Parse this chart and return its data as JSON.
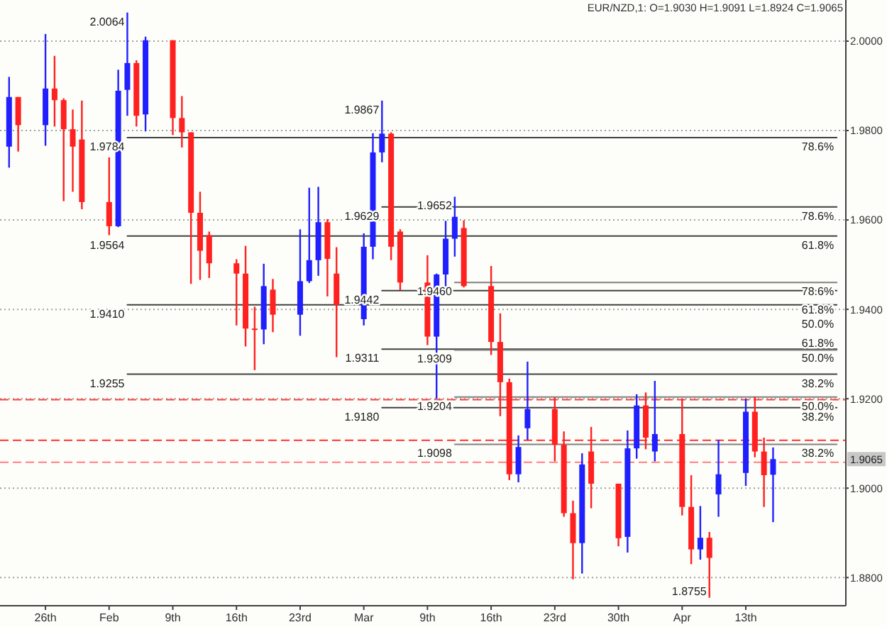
{
  "chart_data": {
    "type": "candlestick",
    "title": "EUR/NZD,1: O=1.9030 H=1.9091 L=1.8924 C=1.9065",
    "x": [
      "--01-22",
      "--01-23",
      "--01-26",
      "--01-27",
      "--01-28",
      "--01-29",
      "--01-30",
      "--02-02",
      "--02-03",
      "--02-04",
      "--02-05",
      "--02-06",
      "--02-09",
      "--02-10",
      "--02-11",
      "--02-12",
      "--02-13",
      "--02-16",
      "--02-17",
      "--02-18",
      "--02-19",
      "--02-20",
      "--02-23",
      "--02-24",
      "--02-25",
      "--02-26",
      "--02-27",
      "--03-02",
      "--03-03",
      "--03-04",
      "--03-05",
      "--03-06",
      "--03-09",
      "--03-10",
      "--03-11",
      "--03-12",
      "--03-13",
      "--03-16",
      "--03-17",
      "--03-18",
      "--03-19",
      "--03-20",
      "--03-23",
      "--03-24",
      "--03-25",
      "--03-26",
      "--03-27",
      "--03-30",
      "--03-31",
      "--04-01",
      "--04-02",
      "--04-03",
      "--04-06",
      "--04-07",
      "--04-08",
      "--04-09",
      "--04-10",
      "--04-13",
      "--04-14",
      "--04-15",
      "--04-16"
    ],
    "ohlc": [
      [
        1.9764,
        1.992,
        1.9717,
        1.9875
      ],
      [
        1.9875,
        1.9875,
        1.9753,
        1.9812
      ],
      [
        1.9812,
        2.0016,
        1.9766,
        1.9894
      ],
      [
        1.9894,
        1.9967,
        1.9809,
        1.9868
      ],
      [
        1.9868,
        1.9872,
        1.9642,
        1.9803
      ],
      [
        1.9803,
        1.9847,
        1.9663,
        1.9764
      ],
      [
        1.978,
        1.9867,
        1.9624,
        1.964
      ],
      [
        1.964,
        1.974,
        1.9566,
        1.9586
      ],
      [
        1.9586,
        1.9936,
        1.9584,
        1.9889
      ],
      [
        1.9891,
        2.0064,
        1.9833,
        1.9951
      ],
      [
        1.9951,
        1.9957,
        1.9809,
        1.9833
      ],
      [
        1.9836,
        2.001,
        1.9798,
        2.0002
      ],
      [
        2.0002,
        2.0002,
        1.979,
        1.9828
      ],
      [
        1.9828,
        1.9877,
        1.9762,
        1.9796
      ],
      [
        1.9796,
        1.9796,
        1.9457,
        1.9616
      ],
      [
        1.9616,
        1.9663,
        1.9466,
        1.9531
      ],
      [
        1.9566,
        1.9574,
        1.947,
        1.9503
      ],
      [
        1.9503,
        1.9512,
        1.9364,
        1.948
      ],
      [
        1.948,
        1.9542,
        1.9317,
        1.9357
      ],
      [
        1.9357,
        1.9406,
        1.9264,
        1.9355
      ],
      [
        1.9355,
        1.9502,
        1.9322,
        1.9452
      ],
      [
        1.9444,
        1.9468,
        1.9349,
        1.9388
      ],
      [
        1.9388,
        1.9579,
        1.9341,
        1.9463
      ],
      [
        1.9463,
        1.9672,
        1.9459,
        1.951
      ],
      [
        1.951,
        1.9674,
        1.9475,
        1.9595
      ],
      [
        1.9595,
        1.9602,
        1.9429,
        1.9513
      ],
      [
        1.948,
        1.9539,
        1.9293,
        1.941
      ],
      [
        1.9378,
        1.957,
        1.9364,
        1.954
      ],
      [
        1.954,
        1.9794,
        1.9512,
        1.9751
      ],
      [
        1.9751,
        1.9867,
        1.9729,
        1.9793
      ],
      [
        1.9793,
        1.9796,
        1.951,
        1.954
      ],
      [
        1.9574,
        1.9579,
        1.9443,
        1.946
      ],
      [
        1.946,
        1.9521,
        1.932,
        1.9339
      ],
      [
        1.9339,
        1.948,
        1.92,
        1.9478
      ],
      [
        1.9478,
        1.9598,
        1.9443,
        1.9558
      ],
      [
        1.9558,
        1.9652,
        1.9518,
        1.9607
      ],
      [
        1.9582,
        1.9599,
        1.9449,
        1.9452
      ],
      [
        1.9452,
        1.9497,
        1.9298,
        1.9327
      ],
      [
        1.9327,
        1.9391,
        1.9161,
        1.9237
      ],
      [
        1.9237,
        1.9245,
        1.9018,
        1.9031
      ],
      [
        1.9031,
        1.9118,
        1.9013,
        1.9092
      ],
      [
        1.9134,
        1.9283,
        1.9108,
        1.9177
      ],
      [
        1.9177,
        1.9203,
        1.906,
        1.9097
      ],
      [
        1.9097,
        1.9127,
        1.8936,
        1.8944
      ],
      [
        1.8944,
        1.8972,
        1.8796,
        1.8877
      ],
      [
        1.8877,
        1.9078,
        1.8809,
        1.9053
      ],
      [
        1.9082,
        1.9137,
        1.8955,
        1.901
      ],
      [
        1.901,
        1.901,
        1.887,
        1.8888
      ],
      [
        1.8891,
        1.9129,
        1.8856,
        1.9089
      ],
      [
        1.9089,
        1.921,
        1.9066,
        1.9185
      ],
      [
        1.9185,
        1.9214,
        1.9087,
        1.9113
      ],
      [
        1.9082,
        1.924,
        1.906,
        1.9121
      ],
      [
        1.9121,
        1.92,
        1.8939,
        1.8958
      ],
      [
        1.8958,
        1.9029,
        1.883,
        1.8863
      ],
      [
        1.8863,
        1.896,
        1.884,
        1.8889
      ],
      [
        1.8889,
        1.8902,
        1.8755,
        1.8844
      ],
      [
        1.8986,
        1.9108,
        1.8936,
        1.9031
      ],
      [
        1.9034,
        1.92,
        1.9005,
        1.9171
      ],
      [
        1.9171,
        1.9205,
        1.9069,
        1.9082
      ],
      [
        1.9082,
        1.9113,
        1.8958,
        1.9029
      ],
      [
        1.903,
        1.9091,
        1.8924,
        1.9065
      ]
    ],
    "colors": [
      "#2020ff",
      "#ff2020",
      "#2020ff",
      "#ff2020",
      "#ff2020",
      "#ff2020",
      "#ff2020",
      "#ff2020",
      "#2020ff",
      "#2020ff",
      "#ff2020",
      "#2020ff",
      "#ff2020",
      "#ff2020",
      "#ff2020",
      "#ff2020",
      "#ff2020",
      "#ff2020",
      "#ff2020",
      "#ff2020",
      "#2020ff",
      "#ff2020",
      "#2020ff",
      "#2020ff",
      "#2020ff",
      "#ff2020",
      "#ff2020",
      "#2020ff",
      "#2020ff",
      "#2020ff",
      "#ff2020",
      "#ff2020",
      "#ff2020",
      "#2020ff",
      "#2020ff",
      "#2020ff",
      "#ff2020",
      "#ff2020",
      "#ff2020",
      "#ff2020",
      "#2020ff",
      "#2020ff",
      "#ff2020",
      "#ff2020",
      "#ff2020",
      "#2020ff",
      "#ff2020",
      "#ff2020",
      "#2020ff",
      "#2020ff",
      "#ff2020",
      "#2020ff",
      "#ff2020",
      "#ff2020",
      "#2020ff",
      "#ff2020",
      "#2020ff",
      "#2020ff",
      "#ff2020",
      "#ff2020",
      "#2020ff"
    ],
    "series": [
      {
        "type": "line",
        "x": [
          "--02-04",
          "--04-23"
        ],
        "values": [
          1.9784,
          1.9784
        ],
        "color": "#404040"
      },
      {
        "type": "line",
        "x": [
          "--02-04",
          "--04-23"
        ],
        "values": [
          1.9564,
          1.9564
        ],
        "color": "#404040"
      },
      {
        "type": "line",
        "x": [
          "--02-04",
          "--04-23"
        ],
        "values": [
          1.941,
          1.941
        ],
        "color": "#404040"
      },
      {
        "type": "line",
        "x": [
          "--02-04",
          "--04-23"
        ],
        "values": [
          1.9255,
          1.9255
        ],
        "color": "#404040"
      },
      {
        "type": "line",
        "x": [
          "--03-04",
          "--04-23"
        ],
        "values": [
          1.9629,
          1.9629
        ],
        "color": "#404040"
      },
      {
        "type": "line",
        "x": [
          "--03-04",
          "--04-23"
        ],
        "values": [
          1.9442,
          1.9442
        ],
        "color": "#404040"
      },
      {
        "type": "line",
        "x": [
          "--03-04",
          "--04-23"
        ],
        "values": [
          1.9311,
          1.9311
        ],
        "color": "#404040"
      },
      {
        "type": "line",
        "x": [
          "--03-04",
          "--04-23"
        ],
        "values": [
          1.918,
          1.918
        ],
        "color": "#404040"
      },
      {
        "type": "line",
        "x": [
          "--03-12",
          "--04-23"
        ],
        "values": [
          1.946,
          1.946
        ],
        "color": "#808080"
      },
      {
        "type": "line",
        "x": [
          "--03-12",
          "--04-23"
        ],
        "values": [
          1.9309,
          1.9309
        ],
        "color": "#808080"
      },
      {
        "type": "line",
        "x": [
          "--03-12",
          "--04-23"
        ],
        "values": [
          1.9204,
          1.9204
        ],
        "color": "#808080"
      },
      {
        "type": "line",
        "x": [
          "--03-12",
          "--04-23"
        ],
        "values": [
          1.9098,
          1.9098
        ],
        "color": "#808080"
      }
    ],
    "ref_lines": [
      {
        "axis": "y",
        "value": 1.9198,
        "color": "#ff4040",
        "line_style": "dashed"
      },
      {
        "axis": "y",
        "value": 1.9107,
        "color": "#ff3030",
        "line_style": "dashed"
      },
      {
        "axis": "y",
        "value": 1.9058,
        "color": "#ff8080",
        "line_style": "dashed"
      }
    ],
    "annotations": [
      {
        "text": "2.0064",
        "x": "--02-04",
        "y": 2.0064
      },
      {
        "text": "1.9867",
        "x": "--03-04",
        "y": 1.9867
      },
      {
        "text": "1.9652",
        "x": "--03-12",
        "y": 1.9652
      },
      {
        "text": "1.8755",
        "x": "--04-09",
        "y": 1.8755
      },
      {
        "text": "1.9784",
        "x": "--02-04",
        "y": 1.9784
      },
      {
        "text": "1.9564",
        "x": "--02-04",
        "y": 1.9564
      },
      {
        "text": "1.9410",
        "x": "--02-04",
        "y": 1.941
      },
      {
        "text": "1.9255",
        "x": "--02-04",
        "y": 1.9255
      },
      {
        "text": "1.9629",
        "x": "--03-04",
        "y": 1.9629
      },
      {
        "text": "1.9442",
        "x": "--03-04",
        "y": 1.9442
      },
      {
        "text": "1.9311",
        "x": "--03-04",
        "y": 1.9311
      },
      {
        "text": "1.9180",
        "x": "--03-04",
        "y": 1.918
      },
      {
        "text": "1.9460",
        "x": "--03-12",
        "y": 1.946
      },
      {
        "text": "1.9309",
        "x": "--03-12",
        "y": 1.9309
      },
      {
        "text": "1.9204",
        "x": "--03-12",
        "y": 1.9204
      },
      {
        "text": "1.9098",
        "x": "--03-12",
        "y": 1.9098
      },
      {
        "text": "78.6%",
        "x": "--04-23",
        "y": 1.9784
      },
      {
        "text": "61.8%",
        "x": "--04-23",
        "y": 1.9564
      },
      {
        "text": "50.0%",
        "x": "--04-23",
        "y": 1.941
      },
      {
        "text": "38.2%",
        "x": "--04-23",
        "y": 1.9255
      },
      {
        "text": "78.6%",
        "x": "--04-23",
        "y": 1.9629
      },
      {
        "text": "61.8%",
        "x": "--04-23",
        "y": 1.9442
      },
      {
        "text": "50.0%",
        "x": "--04-23",
        "y": 1.9311
      },
      {
        "text": "38.2%",
        "x": "--04-23",
        "y": 1.918
      },
      {
        "text": "78.6%",
        "x": "--04-23",
        "y": 1.946
      },
      {
        "text": "61.8%",
        "x": "--04-23",
        "y": 1.9309
      },
      {
        "text": "50.0%",
        "x": "--04-23",
        "y": 1.9204
      },
      {
        "text": "38.2%",
        "x": "--04-23",
        "y": 1.9098
      },
      {
        "text": "1.9065",
        "y": 1.9065
      }
    ],
    "xlim": [
      "--01-21",
      "--04-24"
    ],
    "ylim": [
      1.8737,
      2.0092
    ],
    "xticks": [
      {
        "value": "--01-26",
        "label": "26th"
      },
      {
        "value": "--02-02",
        "label": "Feb"
      },
      {
        "value": "--02-09",
        "label": "9th"
      },
      {
        "value": "--02-16",
        "label": "16th"
      },
      {
        "value": "--02-23",
        "label": "23rd"
      },
      {
        "value": "--03-02",
        "label": "Mar"
      },
      {
        "value": "--03-09",
        "label": "9th"
      },
      {
        "value": "--03-16",
        "label": "16th"
      },
      {
        "value": "--03-23",
        "label": "23rd"
      },
      {
        "value": "--03-30",
        "label": "30th"
      },
      {
        "value": "--04-06",
        "label": "Apr"
      },
      {
        "value": "--04-13",
        "label": "13th"
      }
    ],
    "yticks": [
      {
        "value": 1.88,
        "label": "1.8800"
      },
      {
        "value": 1.9,
        "label": "1.9000"
      },
      {
        "value": 1.92,
        "label": "1.9200"
      },
      {
        "value": 1.94,
        "label": "1.9400"
      },
      {
        "value": 1.96,
        "label": "1.9600"
      },
      {
        "value": 1.98,
        "label": "1.9800"
      },
      {
        "value": 2.0,
        "label": "2.0000"
      }
    ],
    "grid": "y"
  }
}
